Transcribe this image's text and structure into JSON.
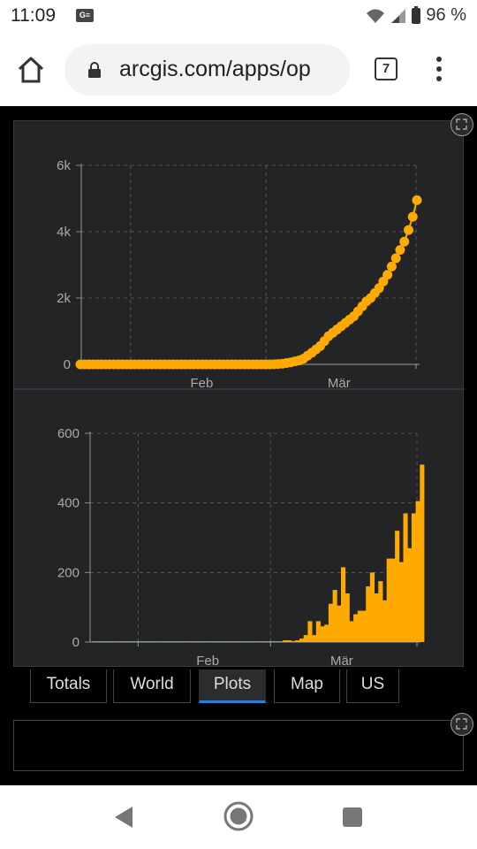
{
  "status": {
    "time": "11:09",
    "battery": "96 %",
    "sim_badge": "G≡"
  },
  "browser": {
    "url": "arcgis.com/apps/op",
    "tab_count": "7"
  },
  "tabs": [
    {
      "label": "Totals",
      "active": false
    },
    {
      "label": "World",
      "active": false
    },
    {
      "label": "Plots",
      "active": true
    },
    {
      "label": "Map",
      "active": false
    },
    {
      "label": "US",
      "active": false
    }
  ],
  "colors": {
    "series": "#ffaa00",
    "panel": "#232426",
    "grid": "#555555",
    "tab_indicator": "#2a7fd4"
  },
  "chart_data": [
    {
      "type": "line",
      "y_ticks": [
        "0",
        "2k",
        "4k",
        "6k"
      ],
      "ylim": [
        0,
        6000
      ],
      "x_ticks": [
        "Feb",
        "Mär"
      ],
      "values": [
        0,
        0,
        0,
        0,
        0,
        0,
        0,
        0,
        0,
        0,
        0,
        0,
        0,
        0,
        0,
        0,
        0,
        0,
        0,
        0,
        0,
        0,
        0,
        0,
        0,
        0,
        0,
        0,
        0,
        0,
        0,
        0,
        0,
        0,
        0,
        0,
        0,
        0,
        0,
        0,
        0,
        0,
        0,
        0,
        0,
        0,
        5,
        10,
        20,
        40,
        60,
        90,
        120,
        170,
        260,
        350,
        450,
        550,
        700,
        850,
        950,
        1050,
        1150,
        1250,
        1350,
        1450,
        1600,
        1750,
        1900,
        2000,
        2150,
        2300,
        2500,
        2700,
        2950,
        3200,
        3450,
        3700,
        4050,
        4450,
        4950
      ]
    },
    {
      "type": "bar",
      "y_ticks": [
        "0",
        "200",
        "400",
        "600"
      ],
      "ylim": [
        0,
        600
      ],
      "x_ticks": [
        "Feb",
        "Mär"
      ],
      "values": [
        0,
        0,
        0,
        0,
        0,
        0,
        0,
        0,
        0,
        0,
        0,
        0,
        0,
        0,
        0,
        0,
        0,
        0,
        0,
        0,
        0,
        0,
        0,
        0,
        0,
        0,
        0,
        0,
        0,
        0,
        0,
        0,
        0,
        0,
        0,
        0,
        0,
        0,
        0,
        0,
        0,
        0,
        0,
        0,
        0,
        0,
        5,
        5,
        3,
        5,
        10,
        20,
        60,
        20,
        60,
        45,
        50,
        110,
        150,
        105,
        215,
        140,
        60,
        80,
        90,
        90,
        160,
        200,
        140,
        175,
        120,
        240,
        240,
        320,
        230,
        370,
        270,
        370,
        405,
        510
      ]
    }
  ]
}
